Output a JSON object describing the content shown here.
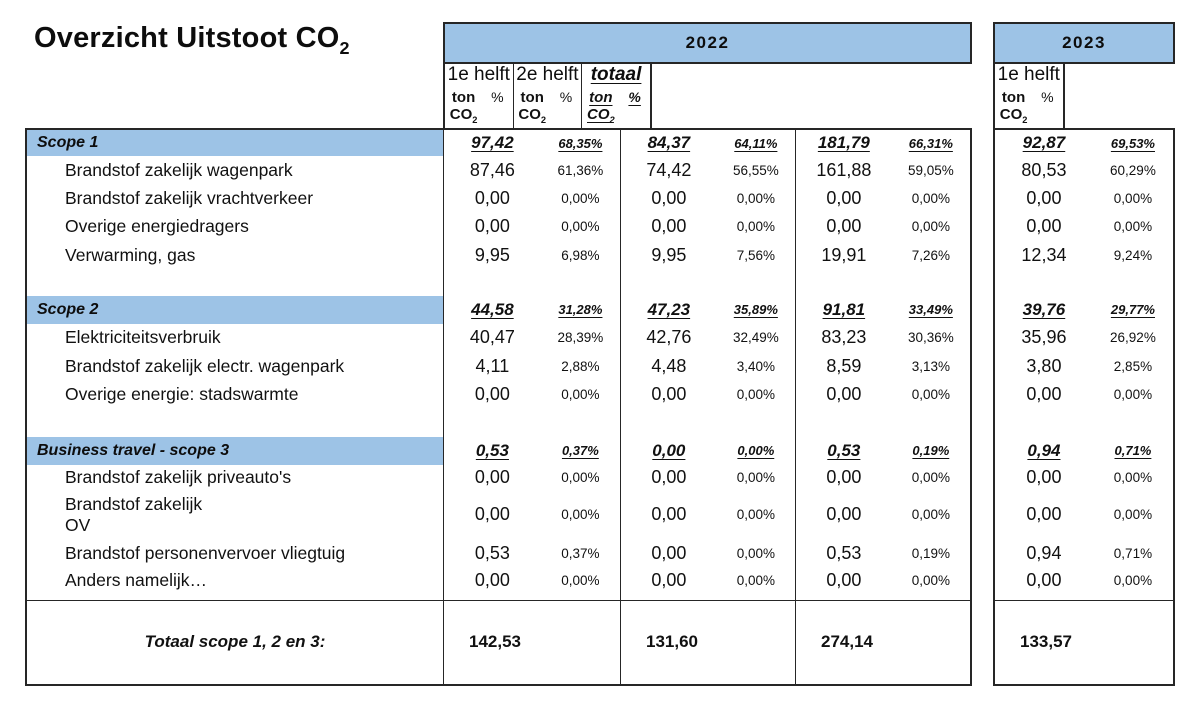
{
  "title": {
    "prefix": "Overzicht Uitstoot CO",
    "sub": "2"
  },
  "colors": {
    "header_blue": "#9DC3E6",
    "border": "#262626"
  },
  "header": {
    "groups": [
      {
        "year": "2022",
        "subcols": [
          {
            "label": "1e helft",
            "emphasis": false
          },
          {
            "label": "2e helft",
            "emphasis": false
          },
          {
            "label": "totaal",
            "emphasis": true
          }
        ]
      },
      {
        "year": "2023",
        "subcols": [
          {
            "label": "1e helft",
            "emphasis": false
          }
        ]
      }
    ],
    "unit_ton_prefix": "ton CO",
    "unit_ton_sub": "2",
    "unit_pct": "%"
  },
  "sections": [
    {
      "label": "Scope 1",
      "summary": [
        [
          "97,42",
          "68,35%"
        ],
        [
          "84,37",
          "64,11%"
        ],
        [
          "181,79",
          "66,31%"
        ],
        [
          "92,87",
          "69,53%"
        ]
      ],
      "rows": [
        {
          "label": "Brandstof zakelijk wagenpark",
          "values": [
            [
              "87,46",
              "61,36%"
            ],
            [
              "74,42",
              "56,55%"
            ],
            [
              "161,88",
              "59,05%"
            ],
            [
              "80,53",
              "60,29%"
            ]
          ]
        },
        {
          "label": "Brandstof zakelijk vrachtverkeer",
          "values": [
            [
              "0,00",
              "0,00%"
            ],
            [
              "0,00",
              "0,00%"
            ],
            [
              "0,00",
              "0,00%"
            ],
            [
              "0,00",
              "0,00%"
            ]
          ]
        },
        {
          "label": "Overige energiedragers",
          "values": [
            [
              "0,00",
              "0,00%"
            ],
            [
              "0,00",
              "0,00%"
            ],
            [
              "0,00",
              "0,00%"
            ],
            [
              "0,00",
              "0,00%"
            ]
          ]
        },
        {
          "label": "Verwarming, gas",
          "values": [
            [
              "9,95",
              "6,98%"
            ],
            [
              "9,95",
              "7,56%"
            ],
            [
              "19,91",
              "7,26%"
            ],
            [
              "12,34",
              "9,24%"
            ]
          ]
        }
      ]
    },
    {
      "label": "Scope 2",
      "summary": [
        [
          "44,58",
          "31,28%"
        ],
        [
          "47,23",
          "35,89%"
        ],
        [
          "91,81",
          "33,49%"
        ],
        [
          "39,76",
          "29,77%"
        ]
      ],
      "rows": [
        {
          "label": "Elektriciteitsverbruik",
          "values": [
            [
              "40,47",
              "28,39%"
            ],
            [
              "42,76",
              "32,49%"
            ],
            [
              "83,23",
              "30,36%"
            ],
            [
              "35,96",
              "26,92%"
            ]
          ]
        },
        {
          "label": "Brandstof zakelijk electr. wagenpark",
          "values": [
            [
              "4,11",
              "2,88%"
            ],
            [
              "4,48",
              "3,40%"
            ],
            [
              "8,59",
              "3,13%"
            ],
            [
              "3,80",
              "2,85%"
            ]
          ]
        },
        {
          "label": "Overige energie: stadswarmte",
          "values": [
            [
              "0,00",
              "0,00%"
            ],
            [
              "0,00",
              "0,00%"
            ],
            [
              "0,00",
              "0,00%"
            ],
            [
              "0,00",
              "0,00%"
            ]
          ]
        }
      ]
    },
    {
      "label": "Business travel - scope 3",
      "summary": [
        [
          "0,53",
          "0,37%"
        ],
        [
          "0,00",
          "0,00%"
        ],
        [
          "0,53",
          "0,19%"
        ],
        [
          "0,94",
          "0,71%"
        ]
      ],
      "rows": [
        {
          "label": "Brandstof zakelijk priveauto's",
          "values": [
            [
              "0,00",
              "0,00%"
            ],
            [
              "0,00",
              "0,00%"
            ],
            [
              "0,00",
              "0,00%"
            ],
            [
              "0,00",
              "0,00%"
            ]
          ]
        },
        {
          "label": "Brandstof zakelijk\nOV",
          "values": [
            [
              "0,00",
              "0,00%"
            ],
            [
              "0,00",
              "0,00%"
            ],
            [
              "0,00",
              "0,00%"
            ],
            [
              "0,00",
              "0,00%"
            ]
          ]
        },
        {
          "label": "Brandstof personenvervoer vliegtuig",
          "values": [
            [
              "0,53",
              "0,37%"
            ],
            [
              "0,00",
              "0,00%"
            ],
            [
              "0,53",
              "0,19%"
            ],
            [
              "0,94",
              "0,71%"
            ]
          ]
        },
        {
          "label": "Anders namelijk…",
          "values": [
            [
              "0,00",
              "0,00%"
            ],
            [
              "0,00",
              "0,00%"
            ],
            [
              "0,00",
              "0,00%"
            ],
            [
              "0,00",
              "0,00%"
            ]
          ]
        }
      ]
    }
  ],
  "grand_total": {
    "label": "Totaal scope 1, 2 en 3:",
    "values": [
      "142,53",
      "131,60",
      "274,14",
      "133,57"
    ]
  }
}
